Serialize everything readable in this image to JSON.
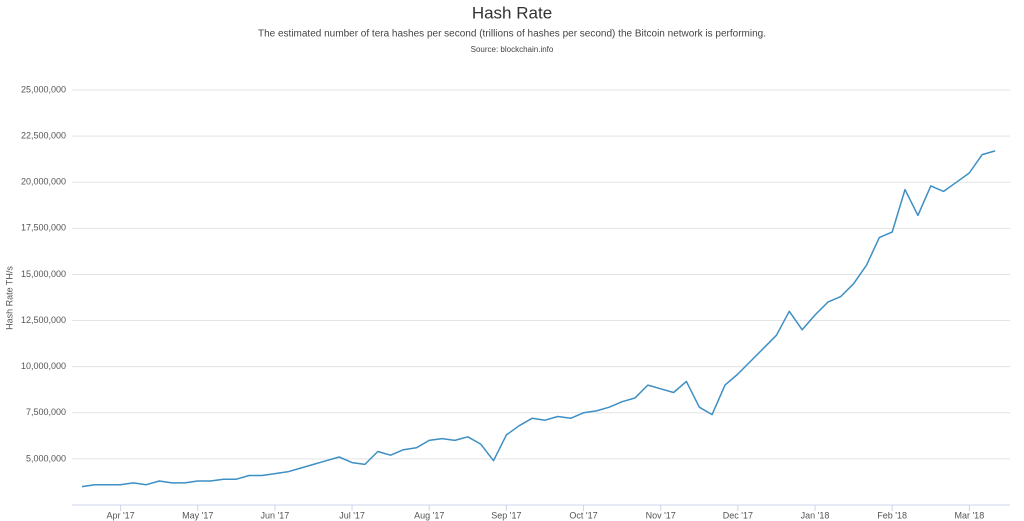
{
  "chart_data": {
    "type": "line",
    "title": "Hash Rate",
    "subtitle": "The estimated number of tera hashes per second (trillions of hashes per second) the Bitcoin network is performing.",
    "source": "Source: blockchain.info",
    "y_label": "Hash Rate TH/s",
    "categories": [
      null,
      null,
      null,
      "Apr '17",
      null,
      null,
      null,
      null,
      null,
      "May '17",
      null,
      null,
      null,
      null,
      null,
      "Jun '17",
      null,
      null,
      null,
      null,
      null,
      "Jul '17",
      null,
      null,
      null,
      null,
      null,
      "Aug '17",
      null,
      null,
      null,
      null,
      null,
      "Sep '17",
      null,
      null,
      null,
      null,
      null,
      "Oct '17",
      null,
      null,
      null,
      null,
      null,
      "Nov '17",
      null,
      null,
      null,
      null,
      null,
      "Dec '17",
      null,
      null,
      null,
      null,
      null,
      "Jan '18",
      null,
      null,
      null,
      null,
      null,
      "Feb '18",
      null,
      null,
      null,
      null,
      null,
      "Mar '18",
      null,
      null
    ],
    "series": [
      {
        "name": "Hash Rate",
        "color": "#3d8fc4",
        "values": [
          3500000,
          3600000,
          3600000,
          3600000,
          3700000,
          3600000,
          3800000,
          3700000,
          3700000,
          3800000,
          3800000,
          3900000,
          3900000,
          4100000,
          4100000,
          4200000,
          4300000,
          4500000,
          4700000,
          4900000,
          5100000,
          4800000,
          4700000,
          5400000,
          5200000,
          5500000,
          5600000,
          6000000,
          6100000,
          6000000,
          6200000,
          5800000,
          4900000,
          6300000,
          6800000,
          7200000,
          7100000,
          7300000,
          7200000,
          7500000,
          7600000,
          7800000,
          8100000,
          8300000,
          9000000,
          8800000,
          8600000,
          9200000,
          7800000,
          7400000,
          9000000,
          9600000,
          10300000,
          11000000,
          11700000,
          13000000,
          12000000,
          12800000,
          13500000,
          13800000,
          14500000,
          15500000,
          17000000,
          17300000,
          19600000,
          18200000,
          19800000,
          19500000,
          20000000,
          20500000,
          21500000,
          21700000
        ]
      }
    ],
    "ylim": [
      2500000,
      25000000
    ],
    "yticks": [
      {
        "value": 5000000,
        "label": "5,000,000"
      },
      {
        "value": 7500000,
        "label": "7,500,000"
      },
      {
        "value": 10000000,
        "label": "10,000,000"
      },
      {
        "value": 12500000,
        "label": "12,500,000"
      },
      {
        "value": 15000000,
        "label": "15,000,000"
      },
      {
        "value": 17500000,
        "label": "17,500,000"
      },
      {
        "value": 20000000,
        "label": "20,000,000"
      },
      {
        "value": 22500000,
        "label": "22,500,000"
      },
      {
        "value": 25000000,
        "label": "25,000,000"
      }
    ],
    "grid": true
  }
}
